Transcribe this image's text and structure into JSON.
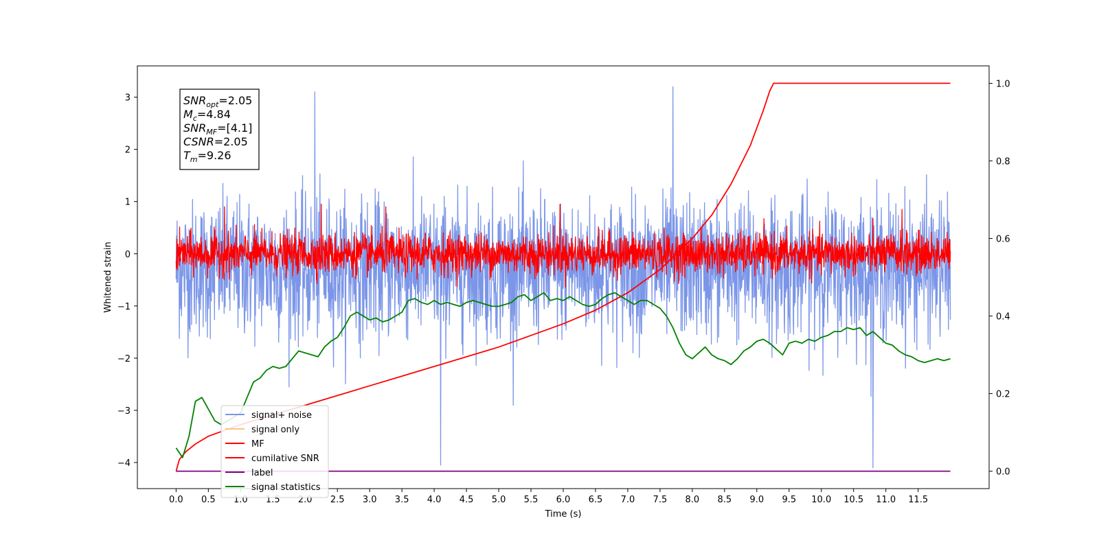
{
  "chart_data": {
    "type": "line",
    "xlabel": "Time (s)",
    "ylabel": "Whitened strain",
    "xlim": [
      -0.6,
      12.6
    ],
    "ylim": [
      -4.5,
      3.6
    ],
    "y2lim": [
      -0.045,
      1.045
    ],
    "x_ticks": [
      0.0,
      0.5,
      1.0,
      1.5,
      2.0,
      2.5,
      3.0,
      3.5,
      4.0,
      4.5,
      5.0,
      5.5,
      6.0,
      6.5,
      7.0,
      7.5,
      8.0,
      8.5,
      9.0,
      9.5,
      10.0,
      10.5,
      11.0,
      11.5
    ],
    "x_tick_labels": [
      "0.0",
      "0.5",
      "1.0",
      "1.5",
      "2.0",
      "2.5",
      "3.0",
      "3.5",
      "4.0",
      "4.5",
      "5.0",
      "5.5",
      "6.0",
      "6.5",
      "7.0",
      "7.5",
      "8.0",
      "8.5",
      "9.0",
      "9.5",
      "10.0",
      "10.5",
      "11.0",
      "11.5"
    ],
    "y_ticks": [
      -4,
      -3,
      -2,
      -1,
      0,
      1,
      2,
      3
    ],
    "y_tick_labels": [
      "−4",
      "−3",
      "−2",
      "−1",
      "0",
      "1",
      "2",
      "3"
    ],
    "y2_ticks": [
      0.0,
      0.2,
      0.4,
      0.6,
      0.8,
      1.0
    ],
    "y2_tick_labels": [
      "0.0",
      "0.2",
      "0.4",
      "0.6",
      "0.8",
      "1.0"
    ],
    "grid": false,
    "legend_placement": "lower-left",
    "annotation": {
      "lines": [
        {
          "sym": "SNR",
          "sub": "opt",
          "value": "=2.05"
        },
        {
          "sym": "M",
          "sub": "c",
          "value": "=4.84"
        },
        {
          "sym": "SNR",
          "sub": "MF",
          "value": "=[4.1]"
        },
        {
          "sym": "CSNR",
          "sub": "",
          "value": "=2.05"
        },
        {
          "sym": "T",
          "sub": "m",
          "value": "=9.26"
        }
      ]
    },
    "series": [
      {
        "name": "signal+ noise",
        "axis": "left",
        "color": "#7b96e8",
        "kind": "noise",
        "x_range": [
          0.0,
          12.0
        ],
        "center": -0.28,
        "amplitude": 1.45,
        "extremes": [
          [
            4.1,
            -4.05
          ],
          [
            10.8,
            -4.1
          ],
          [
            7.7,
            3.2
          ],
          [
            2.15,
            3.1
          ]
        ]
      },
      {
        "name": "signal only",
        "axis": "left",
        "color": "#f5c77a",
        "kind": "flat",
        "values": []
      },
      {
        "name": "MF",
        "axis": "left",
        "color": "#ff0000",
        "kind": "noise",
        "x_range": [
          0.0,
          12.0
        ],
        "center": 0.0,
        "amplitude": 0.42,
        "extremes": [
          [
            0.75,
            0.9
          ],
          [
            2.25,
            0.95
          ],
          [
            3.25,
            0.9
          ],
          [
            5.95,
            0.95
          ],
          [
            11.25,
            0.85
          ]
        ]
      },
      {
        "name": "cumilative SNR",
        "axis": "right",
        "color": "#ff0000",
        "kind": "line",
        "x": [
          0.0,
          0.05,
          0.15,
          0.3,
          0.5,
          0.75,
          1.0,
          1.5,
          2.0,
          2.5,
          3.0,
          3.5,
          4.0,
          4.5,
          5.0,
          5.5,
          6.0,
          6.5,
          7.0,
          7.5,
          8.0,
          8.3,
          8.6,
          8.9,
          9.1,
          9.2,
          9.26,
          10.0,
          11.0,
          12.0
        ],
        "values": [
          0.0,
          0.03,
          0.05,
          0.07,
          0.09,
          0.105,
          0.12,
          0.145,
          0.17,
          0.195,
          0.22,
          0.245,
          0.27,
          0.295,
          0.32,
          0.35,
          0.38,
          0.415,
          0.46,
          0.52,
          0.6,
          0.66,
          0.74,
          0.84,
          0.93,
          0.98,
          1.0,
          1.0,
          1.0,
          1.0
        ]
      },
      {
        "name": "label",
        "axis": "right",
        "color": "#800080",
        "kind": "line",
        "x": [
          0.0,
          12.0
        ],
        "values": [
          0.0,
          0.0
        ]
      },
      {
        "name": "signal statistics",
        "axis": "right",
        "color": "#008000",
        "kind": "line",
        "x": [
          0.0,
          0.1,
          0.2,
          0.3,
          0.4,
          0.5,
          0.6,
          0.7,
          0.8,
          0.9,
          1.0,
          1.1,
          1.2,
          1.3,
          1.4,
          1.5,
          1.6,
          1.7,
          1.8,
          1.9,
          2.0,
          2.1,
          2.2,
          2.3,
          2.4,
          2.5,
          2.6,
          2.7,
          2.8,
          2.9,
          3.0,
          3.1,
          3.2,
          3.3,
          3.4,
          3.5,
          3.6,
          3.7,
          3.8,
          3.9,
          4.0,
          4.1,
          4.2,
          4.3,
          4.4,
          4.5,
          4.6,
          4.7,
          4.8,
          4.9,
          5.0,
          5.1,
          5.2,
          5.3,
          5.4,
          5.5,
          5.6,
          5.7,
          5.8,
          5.9,
          6.0,
          6.1,
          6.2,
          6.3,
          6.4,
          6.5,
          6.6,
          6.7,
          6.8,
          6.9,
          7.0,
          7.1,
          7.2,
          7.3,
          7.4,
          7.5,
          7.6,
          7.7,
          7.8,
          7.9,
          8.0,
          8.1,
          8.2,
          8.3,
          8.4,
          8.5,
          8.6,
          8.7,
          8.8,
          8.9,
          9.0,
          9.1,
          9.2,
          9.3,
          9.4,
          9.5,
          9.6,
          9.7,
          9.8,
          9.9,
          10.0,
          10.1,
          10.2,
          10.3,
          10.4,
          10.5,
          10.6,
          10.7,
          10.8,
          10.9,
          11.0,
          11.1,
          11.2,
          11.3,
          11.4,
          11.5,
          11.6,
          11.7,
          11.8,
          11.9,
          12.0
        ],
        "values": [
          0.06,
          0.035,
          0.09,
          0.18,
          0.19,
          0.16,
          0.13,
          0.12,
          0.13,
          0.14,
          0.15,
          0.19,
          0.23,
          0.24,
          0.26,
          0.27,
          0.265,
          0.27,
          0.29,
          0.31,
          0.305,
          0.3,
          0.295,
          0.32,
          0.335,
          0.345,
          0.37,
          0.4,
          0.41,
          0.4,
          0.39,
          0.395,
          0.385,
          0.39,
          0.4,
          0.41,
          0.44,
          0.445,
          0.435,
          0.43,
          0.44,
          0.43,
          0.435,
          0.43,
          0.425,
          0.435,
          0.44,
          0.435,
          0.43,
          0.425,
          0.425,
          0.43,
          0.435,
          0.45,
          0.455,
          0.44,
          0.45,
          0.46,
          0.44,
          0.445,
          0.44,
          0.45,
          0.44,
          0.43,
          0.425,
          0.43,
          0.445,
          0.455,
          0.46,
          0.45,
          0.44,
          0.43,
          0.44,
          0.44,
          0.43,
          0.42,
          0.4,
          0.37,
          0.33,
          0.3,
          0.29,
          0.305,
          0.32,
          0.3,
          0.29,
          0.285,
          0.275,
          0.29,
          0.31,
          0.32,
          0.335,
          0.34,
          0.33,
          0.315,
          0.3,
          0.33,
          0.335,
          0.33,
          0.34,
          0.335,
          0.345,
          0.35,
          0.36,
          0.36,
          0.37,
          0.365,
          0.37,
          0.35,
          0.36,
          0.345,
          0.33,
          0.325,
          0.31,
          0.3,
          0.295,
          0.285,
          0.28,
          0.285,
          0.29,
          0.285,
          0.29
        ]
      }
    ]
  }
}
